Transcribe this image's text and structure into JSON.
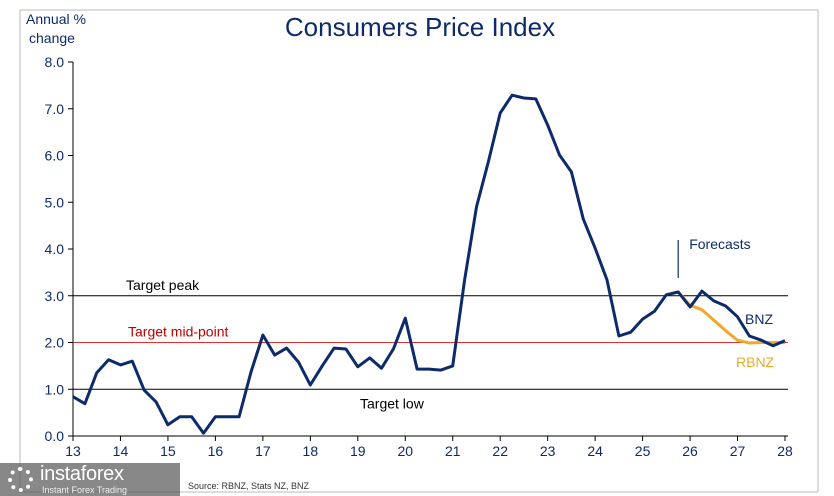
{
  "chart_data": {
    "type": "line",
    "title": "Consumers Price Index",
    "ylabel": "Annual % change",
    "xlabel": "",
    "ylim": [
      0,
      8
    ],
    "xlim": [
      13,
      28
    ],
    "yticks": [
      "0.0",
      "1.0",
      "2.0",
      "3.0",
      "4.0",
      "5.0",
      "6.0",
      "7.0",
      "8.0"
    ],
    "xticks": [
      "13",
      "14",
      "15",
      "16",
      "17",
      "18",
      "19",
      "20",
      "21",
      "22",
      "23",
      "24",
      "25",
      "26",
      "27",
      "28"
    ],
    "grid": false,
    "reference_lines": [
      {
        "label": "Target peak",
        "value": 3.0,
        "color": "#000000"
      },
      {
        "label": "Target mid-point",
        "value": 2.0,
        "color": "#e03030"
      },
      {
        "label": "Target low",
        "value": 1.0,
        "color": "#000000"
      }
    ],
    "annotation": "Forecasts",
    "forecast_start": 25.75,
    "source": "Source: RBNZ, Stats NZ, BNZ",
    "series": [
      {
        "name": "BNZ",
        "color": "#0d2b6b",
        "x_start": 13.0,
        "x_step": 0.25,
        "values": [
          0.84,
          0.69,
          1.35,
          1.63,
          1.52,
          1.6,
          0.98,
          0.73,
          0.24,
          0.41,
          0.41,
          0.06,
          0.41,
          0.41,
          0.41,
          1.37,
          2.16,
          1.73,
          1.88,
          1.58,
          1.09,
          1.5,
          1.88,
          1.86,
          1.48,
          1.67,
          1.45,
          1.86,
          2.52,
          1.43,
          1.43,
          1.41,
          1.5,
          3.34,
          4.9,
          5.86,
          6.91,
          7.29,
          7.23,
          7.21,
          6.65,
          6.01,
          5.65,
          4.64,
          4.02,
          3.34,
          2.14,
          2.22,
          2.5,
          2.67,
          3.02,
          3.08,
          2.76,
          3.1,
          2.89,
          2.78,
          2.55,
          2.14,
          2.05,
          1.93,
          2.04
        ]
      },
      {
        "name": "RBNZ",
        "color": "#f0a92a",
        "x_start": 25.75,
        "x_step": 0.25,
        "values": [
          3.08,
          2.8,
          2.7,
          2.48,
          2.25,
          2.05,
          1.99,
          2.0,
          2.0,
          2.0
        ]
      }
    ]
  },
  "watermark": {
    "brand": "instaforex",
    "tagline": "Instant Forex Trading"
  }
}
